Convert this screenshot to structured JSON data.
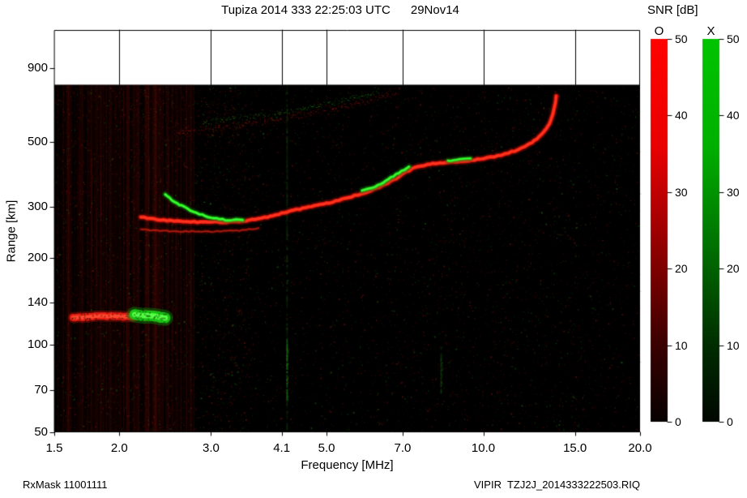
{
  "title": "Tupiza 2014 333 22:25:03 UTC      29Nov14",
  "footer": {
    "left": "RxMask 11001111",
    "right": "VIPIR  TZJ2J_2014333222503.RIQ"
  },
  "colorbar": {
    "title": "SNR [dB]",
    "range": [
      0,
      50
    ],
    "ticks": [
      50,
      40,
      30,
      20,
      10,
      0
    ],
    "columns": [
      {
        "label": "O",
        "color": "red"
      },
      {
        "label": "X",
        "color": "green"
      }
    ],
    "o_gradient": [
      [
        0,
        "#ff0300"
      ],
      [
        0.28,
        "#e90000"
      ],
      [
        0.55,
        "#8f0000"
      ],
      [
        0.8,
        "#3a0000"
      ],
      [
        1,
        "#070000"
      ]
    ],
    "x_gradient": [
      [
        0,
        "#00c400"
      ],
      [
        0.28,
        "#00b000"
      ],
      [
        0.55,
        "#006f00"
      ],
      [
        0.8,
        "#002d00"
      ],
      [
        1,
        "#000700"
      ]
    ]
  },
  "chart_data": {
    "type": "heatmap",
    "title": "Tupiza 2014 333 22:25:03 UTC 29Nov14",
    "xlabel": "Frequency [MHz]",
    "ylabel": "Range [km]",
    "x_scale": "log",
    "y_scale": "log",
    "xlim": [
      1.5,
      20
    ],
    "ylim": [
      50,
      1220
    ],
    "x_ticks": [
      1.5,
      2.0,
      3.0,
      4.1,
      5.0,
      7.0,
      10.0,
      15.0,
      20.0
    ],
    "x_tick_labels": [
      "1.5",
      "2.0",
      "3.0",
      "4.1",
      "5.0",
      "7.0",
      "10.0",
      "15.0",
      "20.0"
    ],
    "y_ticks": [
      900,
      500,
      300,
      200,
      140,
      100,
      70,
      50
    ],
    "data_top_km": 790,
    "background": "#000000",
    "series": [
      {
        "name": "second-hop-O-trace",
        "mode": "O",
        "style": "speckle",
        "color": "red",
        "spread": 7,
        "density": 2.2,
        "points": [
          [
            2.55,
            540
          ],
          [
            3.0,
            560
          ],
          [
            3.5,
            580
          ],
          [
            4.0,
            602
          ],
          [
            4.5,
            624
          ],
          [
            5.0,
            646
          ],
          [
            5.5,
            670
          ],
          [
            6.0,
            698
          ],
          [
            6.5,
            728
          ],
          [
            6.9,
            757
          ]
        ]
      },
      {
        "name": "second-hop-X-trace",
        "mode": "X",
        "style": "speckle",
        "color": "green",
        "spread": 5,
        "density": 1.1,
        "points": [
          [
            2.9,
            590
          ],
          [
            3.4,
            610
          ],
          [
            3.9,
            630
          ],
          [
            4.4,
            652
          ],
          [
            4.9,
            676
          ],
          [
            5.4,
            702
          ],
          [
            5.9,
            730
          ],
          [
            6.3,
            752
          ]
        ]
      },
      {
        "name": "spread-F-cloud",
        "style": "cloud",
        "color": "red",
        "density": 380,
        "fmin": 2.15,
        "fmax": 3.4,
        "kmmin": 510,
        "kmmax": 760
      },
      {
        "name": "ghost-trace",
        "style": "line",
        "color": "red",
        "width": 3,
        "alpha": 0.4,
        "points": [
          [
            2.2,
            250
          ],
          [
            2.5,
            247
          ],
          [
            3.0,
            246
          ],
          [
            3.4,
            248
          ],
          [
            3.7,
            253
          ]
        ]
      },
      {
        "name": "F-trace-O",
        "mode": "O",
        "style": "line",
        "color": "red",
        "width": 5,
        "points": [
          [
            2.2,
            276
          ],
          [
            2.4,
            270
          ],
          [
            2.7,
            266
          ],
          [
            3.0,
            265
          ],
          [
            3.3,
            266
          ],
          [
            3.6,
            270
          ],
          [
            3.85,
            276
          ],
          [
            4.1,
            285
          ],
          [
            4.5,
            296
          ],
          [
            5.0,
            308
          ],
          [
            5.5,
            322
          ],
          [
            6.0,
            337
          ],
          [
            6.4,
            355
          ],
          [
            6.8,
            375
          ],
          [
            7.0,
            390
          ],
          [
            7.3,
            405
          ],
          [
            7.6,
            415
          ],
          [
            8.0,
            422
          ],
          [
            8.5,
            427
          ],
          [
            9.0,
            430
          ],
          [
            9.5,
            434
          ],
          [
            10.0,
            440
          ],
          [
            10.5,
            447
          ],
          [
            11.0,
            455
          ],
          [
            11.5,
            468
          ],
          [
            12.0,
            483
          ],
          [
            12.4,
            500
          ],
          [
            12.8,
            522
          ],
          [
            13.1,
            545
          ],
          [
            13.4,
            580
          ],
          [
            13.6,
            625
          ],
          [
            13.75,
            680
          ],
          [
            13.8,
            722
          ]
        ]
      },
      {
        "name": "F-trace-X-seg1",
        "mode": "X",
        "style": "line",
        "color": "green",
        "width": 4,
        "points": [
          [
            2.45,
            330
          ],
          [
            2.55,
            312
          ],
          [
            2.7,
            295
          ],
          [
            2.85,
            283
          ],
          [
            3.0,
            275
          ],
          [
            3.2,
            270
          ],
          [
            3.45,
            270
          ]
        ]
      },
      {
        "name": "F-trace-X-seg2",
        "mode": "X",
        "style": "line",
        "color": "green",
        "width": 4,
        "points": [
          [
            5.85,
            340
          ],
          [
            6.2,
            352
          ],
          [
            6.5,
            368
          ],
          [
            6.8,
            388
          ],
          [
            7.05,
            402
          ],
          [
            7.2,
            412
          ]
        ]
      },
      {
        "name": "F-trace-X-seg3",
        "mode": "X",
        "style": "line",
        "color": "green",
        "width": 3.5,
        "points": [
          [
            8.55,
            431
          ],
          [
            9.0,
            436
          ],
          [
            9.45,
            440
          ]
        ]
      },
      {
        "name": "Es-trace-O",
        "mode": "O",
        "style": "blob",
        "color": "red",
        "width": 9,
        "points": [
          [
            1.63,
            124
          ],
          [
            1.85,
            126
          ],
          [
            2.12,
            125
          ]
        ]
      },
      {
        "name": "Es-trace-X",
        "mode": "X",
        "style": "blob",
        "color": "green",
        "width": 13,
        "points": [
          [
            2.14,
            127
          ],
          [
            2.3,
            126
          ],
          [
            2.45,
            124
          ]
        ]
      }
    ],
    "noise": {
      "speckle_count": 6500,
      "speckle_red_ratio": 0.72,
      "stripe_band": {
        "fmin": 1.52,
        "fmax": 2.78
      },
      "rfi_lines": [
        {
          "freq": 4.2,
          "full": true,
          "alpha": 0.3,
          "bright_km": [
            65,
            105
          ],
          "bright_alpha": 0.55,
          "color": "green"
        },
        {
          "freq": 8.3,
          "full": false,
          "alpha": 0,
          "bright_km": [
            68,
            100
          ],
          "bright_alpha": 0.35,
          "color": "green"
        }
      ]
    }
  }
}
